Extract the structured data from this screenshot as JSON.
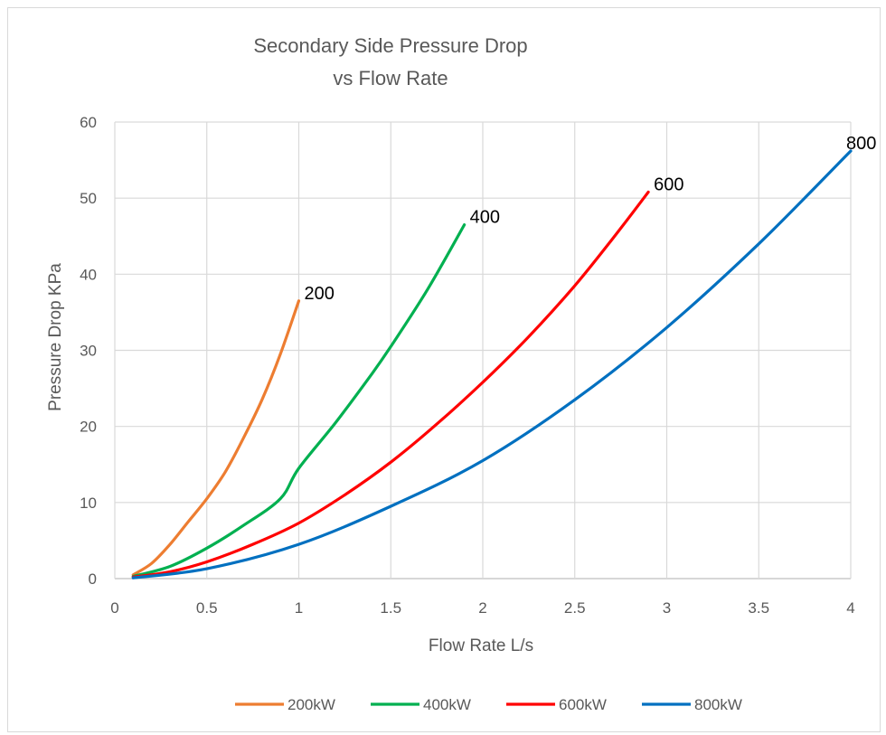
{
  "chart_data": {
    "type": "line",
    "title_line1": "Secondary Side Pressure Drop",
    "title_line2": "vs Flow Rate",
    "xlabel": "Flow Rate L/s",
    "ylabel": "Pressure Drop KPa",
    "xlim": [
      0,
      4
    ],
    "ylim": [
      0,
      60
    ],
    "x_ticks": [
      "0",
      "0.5",
      "1",
      "1.5",
      "2",
      "2.5",
      "3",
      "3.5",
      "4"
    ],
    "y_ticks": [
      "0",
      "10",
      "20",
      "30",
      "40",
      "50",
      "60"
    ],
    "grid": true,
    "legend_position": "bottom",
    "series": [
      {
        "name": "200kW",
        "end_label": "200",
        "color": "#ED7D31",
        "points": [
          [
            0.1,
            0.5
          ],
          [
            0.2,
            2.0
          ],
          [
            0.3,
            4.5
          ],
          [
            0.4,
            7.5
          ],
          [
            0.5,
            10.5
          ],
          [
            0.6,
            14.0
          ],
          [
            0.7,
            18.5
          ],
          [
            0.8,
            23.5
          ],
          [
            0.9,
            29.5
          ],
          [
            1.0,
            36.5
          ]
        ]
      },
      {
        "name": "400kW",
        "end_label": "400",
        "color": "#00B050",
        "points": [
          [
            0.1,
            0.3
          ],
          [
            0.3,
            1.6
          ],
          [
            0.5,
            4.0
          ],
          [
            0.7,
            7.0
          ],
          [
            0.9,
            10.5
          ],
          [
            1.0,
            14.5
          ],
          [
            1.2,
            20.5
          ],
          [
            1.4,
            27.0
          ],
          [
            1.5,
            30.5
          ],
          [
            1.7,
            38.0
          ],
          [
            1.9,
            46.5
          ]
        ]
      },
      {
        "name": "600kW",
        "end_label": "600",
        "color": "#FF0000",
        "points": [
          [
            0.1,
            0.2
          ],
          [
            0.3,
            0.9
          ],
          [
            0.5,
            2.2
          ],
          [
            0.75,
            4.5
          ],
          [
            1.0,
            7.3
          ],
          [
            1.25,
            11.0
          ],
          [
            1.5,
            15.3
          ],
          [
            1.75,
            20.3
          ],
          [
            2.0,
            25.8
          ],
          [
            2.25,
            31.8
          ],
          [
            2.5,
            38.5
          ],
          [
            2.7,
            44.5
          ],
          [
            2.9,
            50.8
          ]
        ]
      },
      {
        "name": "800kW",
        "end_label": "800",
        "color": "#0070C0",
        "points": [
          [
            0.1,
            0.1
          ],
          [
            0.5,
            1.3
          ],
          [
            1.0,
            4.5
          ],
          [
            1.5,
            9.5
          ],
          [
            2.0,
            15.5
          ],
          [
            2.5,
            23.5
          ],
          [
            3.0,
            33.0
          ],
          [
            3.5,
            44.0
          ],
          [
            4.0,
            56.2
          ]
        ]
      }
    ]
  }
}
